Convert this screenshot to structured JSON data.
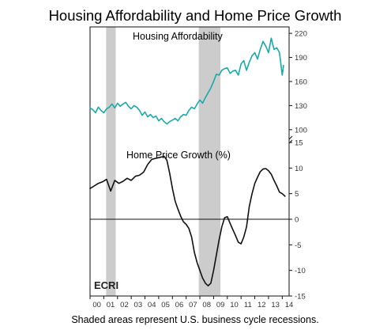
{
  "chart_data": {
    "title": "Housing Affordability and Home Price Growth",
    "footnote": "Shaded areas represent U.S. business cycle recessions.",
    "logo": "ECRI",
    "x_axis": {
      "range": [
        2000.0,
        2014.5
      ],
      "tick_labels": [
        "00",
        "01",
        "02",
        "03",
        "04",
        "05",
        "06",
        "07",
        "08",
        "09",
        "10",
        "11",
        "12",
        "13",
        "14"
      ],
      "tick_years": [
        2000,
        2001,
        2002,
        2003,
        2004,
        2005,
        2006,
        2007,
        2008,
        2009,
        2010,
        2011,
        2012,
        2013,
        2014
      ]
    },
    "recessions": [
      {
        "start": 2001.17,
        "end": 2001.87
      },
      {
        "start": 2007.92,
        "end": 2009.5
      }
    ],
    "panels": [
      {
        "name": "affordability",
        "type": "line",
        "label": "Housing Affordability",
        "color": "#1aa9a9",
        "y_axis": {
          "ticks": [
            100,
            130,
            160,
            190,
            220
          ],
          "range": [
            88,
            228
          ],
          "side": "right"
        },
        "series": [
          {
            "x": [
              2000.0,
              2000.2,
              2000.4,
              2000.6,
              2000.8,
              2001.0,
              2001.2,
              2001.4,
              2001.6,
              2001.8,
              2002.0,
              2002.2,
              2002.4,
              2002.6,
              2002.8,
              2003.0,
              2003.2,
              2003.4,
              2003.6,
              2003.8,
              2004.0,
              2004.2,
              2004.4,
              2004.6,
              2004.8,
              2005.0,
              2005.2,
              2005.4,
              2005.6,
              2005.8,
              2006.0,
              2006.2,
              2006.4,
              2006.6,
              2006.8,
              2007.0,
              2007.2,
              2007.4,
              2007.6,
              2007.8,
              2008.0,
              2008.2,
              2008.4,
              2008.6,
              2008.8,
              2009.0,
              2009.2,
              2009.4,
              2009.6,
              2009.8,
              2010.0,
              2010.2,
              2010.4,
              2010.6,
              2010.8,
              2011.0,
              2011.2,
              2011.4,
              2011.6,
              2011.8,
              2012.0,
              2012.2,
              2012.4,
              2012.6,
              2012.8,
              2013.0,
              2013.2,
              2013.4,
              2013.6,
              2013.8,
              2014.0,
              2014.1
            ],
            "values": [
              127,
              125,
              121,
              128,
              124,
              121,
              126,
              128,
              132,
              127,
              133,
              129,
              132,
              134,
              129,
              126,
              130,
              128,
              124,
              118,
              122,
              116,
              119,
              115,
              117,
              111,
              114,
              110,
              107,
              110,
              112,
              114,
              111,
              116,
              119,
              118,
              124,
              128,
              126,
              132,
              137,
              133,
              140,
              146,
              152,
              160,
              169,
              168,
              174,
              176,
              177,
              170,
              173,
              174,
              168,
              182,
              186,
              174,
              184,
              192,
              196,
              188,
              200,
              210,
              204,
              196,
              214,
              200,
              202,
              196,
              168,
              180
            ]
          }
        ]
      },
      {
        "name": "price-growth",
        "type": "line",
        "label": "Home Price Growth (%)",
        "color": "#111111",
        "y_axis": {
          "ticks": [
            -15,
            -10,
            -5,
            0,
            5,
            10,
            15
          ],
          "range": [
            -15,
            15
          ],
          "side": "right",
          "zero_line": true
        },
        "series": [
          {
            "x": [
              2000.0,
              2000.3,
              2000.6,
              2000.9,
              2001.2,
              2001.5,
              2001.8,
              2002.1,
              2002.4,
              2002.7,
              2003.0,
              2003.3,
              2003.6,
              2003.9,
              2004.2,
              2004.5,
              2004.8,
              2005.1,
              2005.4,
              2005.6,
              2005.8,
              2006.0,
              2006.2,
              2006.4,
              2006.6,
              2006.8,
              2007.0,
              2007.2,
              2007.4,
              2007.6,
              2007.8,
              2008.0,
              2008.2,
              2008.4,
              2008.6,
              2008.8,
              2009.0,
              2009.2,
              2009.4,
              2009.6,
              2009.8,
              2010.0,
              2010.2,
              2010.4,
              2010.6,
              2010.8,
              2011.0,
              2011.2,
              2011.4,
              2011.6,
              2011.8,
              2012.0,
              2012.2,
              2012.4,
              2012.6,
              2012.8,
              2013.0,
              2013.2,
              2013.4,
              2013.6,
              2013.8,
              2014.0,
              2014.2
            ],
            "values": [
              6.0,
              6.5,
              7.0,
              7.3,
              7.8,
              5.5,
              7.6,
              7.0,
              7.4,
              8.0,
              7.6,
              8.4,
              8.6,
              9.2,
              10.7,
              11.7,
              11.9,
              12.1,
              12.3,
              11.5,
              9.0,
              6.0,
              3.5,
              2.0,
              0.6,
              -0.5,
              -1.0,
              -1.8,
              -3.5,
              -6.5,
              -8.5,
              -10.0,
              -11.5,
              -12.5,
              -13.0,
              -12.5,
              -10.0,
              -7.0,
              -4.0,
              -1.5,
              0.3,
              0.5,
              -0.8,
              -2.0,
              -3.2,
              -4.5,
              -4.8,
              -3.5,
              -1.5,
              2.5,
              5.0,
              7.0,
              8.2,
              9.3,
              9.8,
              9.9,
              9.5,
              8.8,
              7.6,
              6.5,
              5.3,
              5.0,
              4.5
            ]
          }
        ]
      }
    ]
  }
}
